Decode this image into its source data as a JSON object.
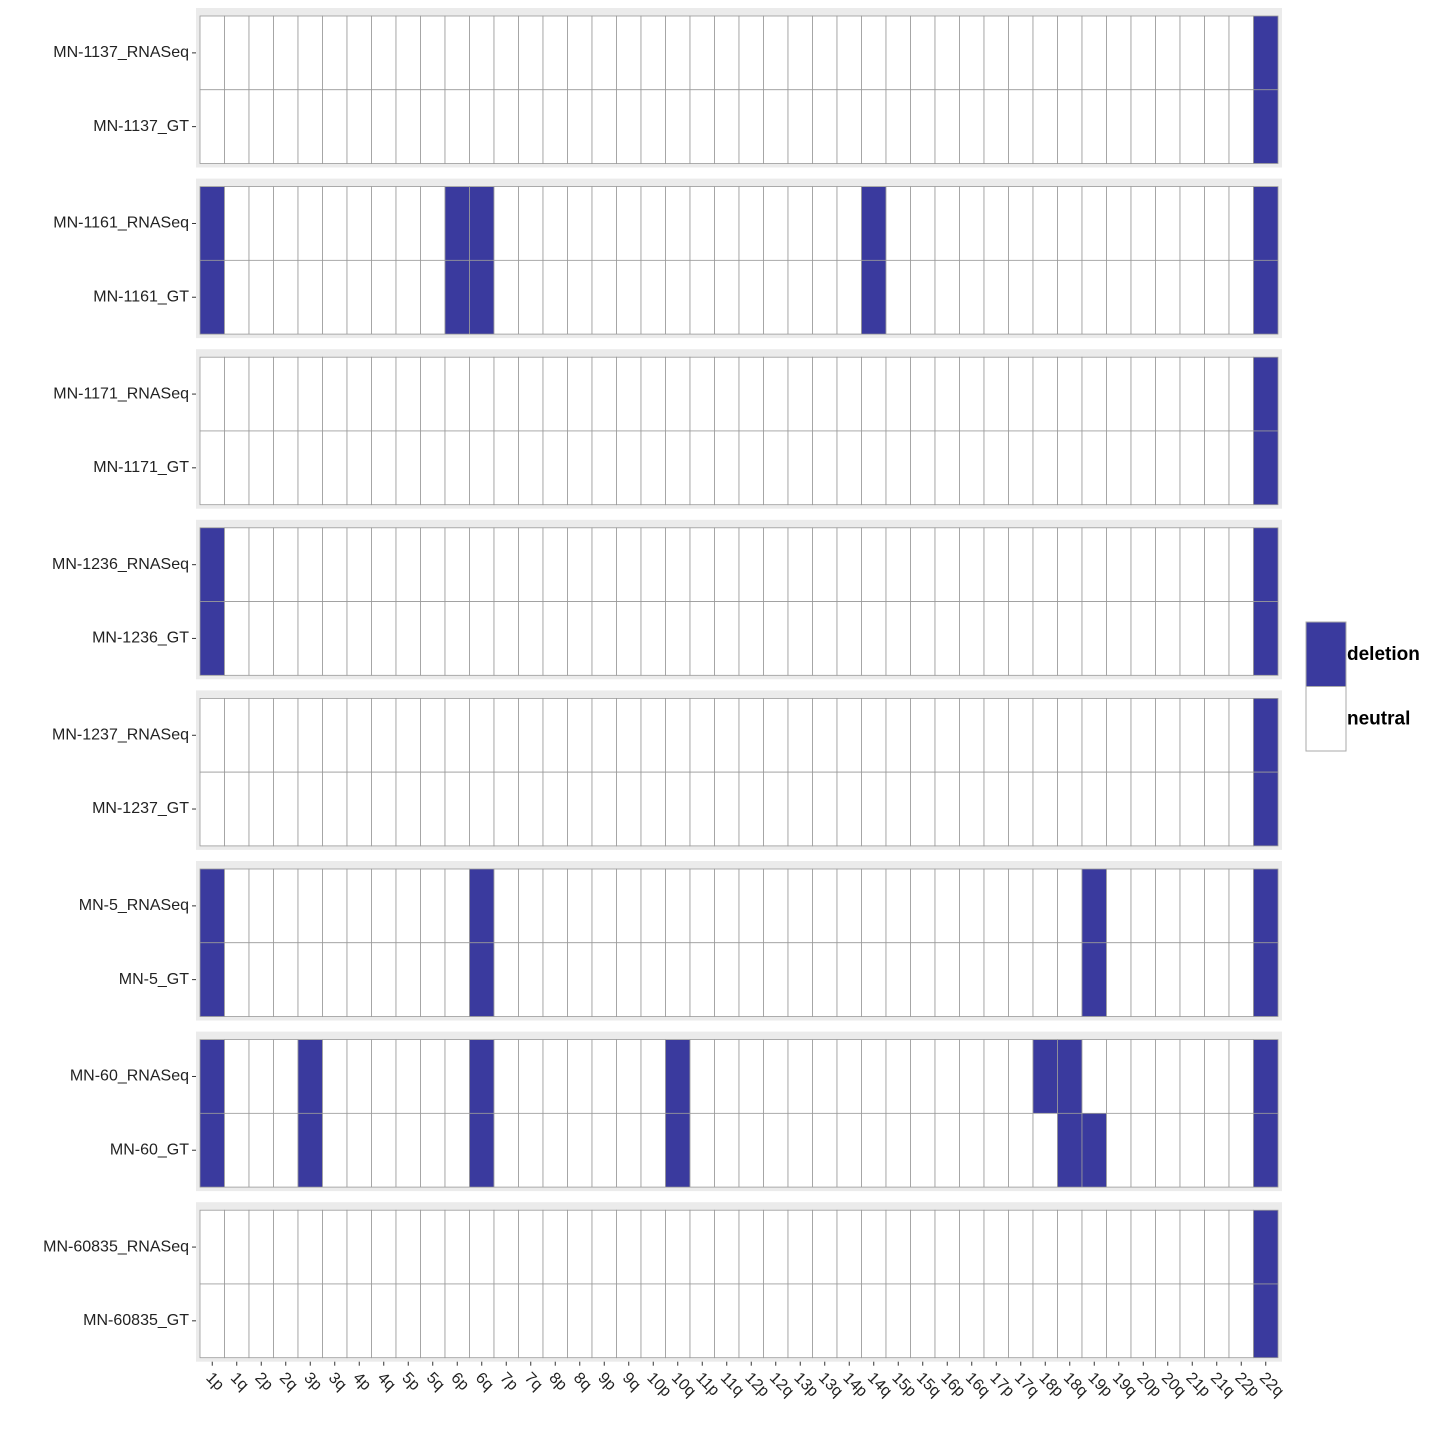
{
  "chart_data": {
    "type": "heatmap",
    "categories": [
      "1p",
      "1q",
      "2p",
      "2q",
      "3p",
      "3q",
      "4p",
      "4q",
      "5p",
      "5q",
      "6p",
      "6q",
      "7p",
      "7q",
      "8p",
      "8q",
      "9p",
      "9q",
      "10p",
      "10q",
      "11p",
      "11q",
      "12p",
      "12q",
      "13p",
      "13q",
      "14p",
      "14q",
      "15p",
      "15q",
      "16p",
      "16q",
      "17p",
      "17q",
      "18p",
      "18q",
      "19p",
      "19q",
      "20p",
      "20q",
      "21p",
      "21q",
      "22p",
      "22q"
    ],
    "legend": [
      {
        "name": "deletion",
        "color": "#3a3a9e"
      },
      {
        "name": "neutral",
        "color": "#ffffff"
      }
    ],
    "series": [
      {
        "name": "MN-1137_RNASeq",
        "values": [
          "neutral",
          "neutral",
          "neutral",
          "neutral",
          "neutral",
          "neutral",
          "neutral",
          "neutral",
          "neutral",
          "neutral",
          "neutral",
          "neutral",
          "neutral",
          "neutral",
          "neutral",
          "neutral",
          "neutral",
          "neutral",
          "neutral",
          "neutral",
          "neutral",
          "neutral",
          "neutral",
          "neutral",
          "neutral",
          "neutral",
          "neutral",
          "neutral",
          "neutral",
          "neutral",
          "neutral",
          "neutral",
          "neutral",
          "neutral",
          "neutral",
          "neutral",
          "neutral",
          "neutral",
          "neutral",
          "neutral",
          "neutral",
          "neutral",
          "neutral",
          "deletion"
        ]
      },
      {
        "name": "MN-1137_GT",
        "values": [
          "neutral",
          "neutral",
          "neutral",
          "neutral",
          "neutral",
          "neutral",
          "neutral",
          "neutral",
          "neutral",
          "neutral",
          "neutral",
          "neutral",
          "neutral",
          "neutral",
          "neutral",
          "neutral",
          "neutral",
          "neutral",
          "neutral",
          "neutral",
          "neutral",
          "neutral",
          "neutral",
          "neutral",
          "neutral",
          "neutral",
          "neutral",
          "neutral",
          "neutral",
          "neutral",
          "neutral",
          "neutral",
          "neutral",
          "neutral",
          "neutral",
          "neutral",
          "neutral",
          "neutral",
          "neutral",
          "neutral",
          "neutral",
          "neutral",
          "neutral",
          "deletion"
        ]
      },
      {
        "name": "MN-1161_RNASeq",
        "values": [
          "deletion",
          "neutral",
          "neutral",
          "neutral",
          "neutral",
          "neutral",
          "neutral",
          "neutral",
          "neutral",
          "neutral",
          "deletion",
          "deletion",
          "neutral",
          "neutral",
          "neutral",
          "neutral",
          "neutral",
          "neutral",
          "neutral",
          "neutral",
          "neutral",
          "neutral",
          "neutral",
          "neutral",
          "neutral",
          "neutral",
          "neutral",
          "deletion",
          "neutral",
          "neutral",
          "neutral",
          "neutral",
          "neutral",
          "neutral",
          "neutral",
          "neutral",
          "neutral",
          "neutral",
          "neutral",
          "neutral",
          "neutral",
          "neutral",
          "neutral",
          "deletion"
        ]
      },
      {
        "name": "MN-1161_GT",
        "values": [
          "deletion",
          "neutral",
          "neutral",
          "neutral",
          "neutral",
          "neutral",
          "neutral",
          "neutral",
          "neutral",
          "neutral",
          "deletion",
          "deletion",
          "neutral",
          "neutral",
          "neutral",
          "neutral",
          "neutral",
          "neutral",
          "neutral",
          "neutral",
          "neutral",
          "neutral",
          "neutral",
          "neutral",
          "neutral",
          "neutral",
          "neutral",
          "deletion",
          "neutral",
          "neutral",
          "neutral",
          "neutral",
          "neutral",
          "neutral",
          "neutral",
          "neutral",
          "neutral",
          "neutral",
          "neutral",
          "neutral",
          "neutral",
          "neutral",
          "neutral",
          "deletion"
        ]
      },
      {
        "name": "MN-1171_RNASeq",
        "values": [
          "neutral",
          "neutral",
          "neutral",
          "neutral",
          "neutral",
          "neutral",
          "neutral",
          "neutral",
          "neutral",
          "neutral",
          "neutral",
          "neutral",
          "neutral",
          "neutral",
          "neutral",
          "neutral",
          "neutral",
          "neutral",
          "neutral",
          "neutral",
          "neutral",
          "neutral",
          "neutral",
          "neutral",
          "neutral",
          "neutral",
          "neutral",
          "neutral",
          "neutral",
          "neutral",
          "neutral",
          "neutral",
          "neutral",
          "neutral",
          "neutral",
          "neutral",
          "neutral",
          "neutral",
          "neutral",
          "neutral",
          "neutral",
          "neutral",
          "neutral",
          "deletion"
        ]
      },
      {
        "name": "MN-1171_GT",
        "values": [
          "neutral",
          "neutral",
          "neutral",
          "neutral",
          "neutral",
          "neutral",
          "neutral",
          "neutral",
          "neutral",
          "neutral",
          "neutral",
          "neutral",
          "neutral",
          "neutral",
          "neutral",
          "neutral",
          "neutral",
          "neutral",
          "neutral",
          "neutral",
          "neutral",
          "neutral",
          "neutral",
          "neutral",
          "neutral",
          "neutral",
          "neutral",
          "neutral",
          "neutral",
          "neutral",
          "neutral",
          "neutral",
          "neutral",
          "neutral",
          "neutral",
          "neutral",
          "neutral",
          "neutral",
          "neutral",
          "neutral",
          "neutral",
          "neutral",
          "neutral",
          "deletion"
        ]
      },
      {
        "name": "MN-1236_RNASeq",
        "values": [
          "deletion",
          "neutral",
          "neutral",
          "neutral",
          "neutral",
          "neutral",
          "neutral",
          "neutral",
          "neutral",
          "neutral",
          "neutral",
          "neutral",
          "neutral",
          "neutral",
          "neutral",
          "neutral",
          "neutral",
          "neutral",
          "neutral",
          "neutral",
          "neutral",
          "neutral",
          "neutral",
          "neutral",
          "neutral",
          "neutral",
          "neutral",
          "neutral",
          "neutral",
          "neutral",
          "neutral",
          "neutral",
          "neutral",
          "neutral",
          "neutral",
          "neutral",
          "neutral",
          "neutral",
          "neutral",
          "neutral",
          "neutral",
          "neutral",
          "neutral",
          "deletion"
        ]
      },
      {
        "name": "MN-1236_GT",
        "values": [
          "deletion",
          "neutral",
          "neutral",
          "neutral",
          "neutral",
          "neutral",
          "neutral",
          "neutral",
          "neutral",
          "neutral",
          "neutral",
          "neutral",
          "neutral",
          "neutral",
          "neutral",
          "neutral",
          "neutral",
          "neutral",
          "neutral",
          "neutral",
          "neutral",
          "neutral",
          "neutral",
          "neutral",
          "neutral",
          "neutral",
          "neutral",
          "neutral",
          "neutral",
          "neutral",
          "neutral",
          "neutral",
          "neutral",
          "neutral",
          "neutral",
          "neutral",
          "neutral",
          "neutral",
          "neutral",
          "neutral",
          "neutral",
          "neutral",
          "neutral",
          "deletion"
        ]
      },
      {
        "name": "MN-1237_RNASeq",
        "values": [
          "neutral",
          "neutral",
          "neutral",
          "neutral",
          "neutral",
          "neutral",
          "neutral",
          "neutral",
          "neutral",
          "neutral",
          "neutral",
          "neutral",
          "neutral",
          "neutral",
          "neutral",
          "neutral",
          "neutral",
          "neutral",
          "neutral",
          "neutral",
          "neutral",
          "neutral",
          "neutral",
          "neutral",
          "neutral",
          "neutral",
          "neutral",
          "neutral",
          "neutral",
          "neutral",
          "neutral",
          "neutral",
          "neutral",
          "neutral",
          "neutral",
          "neutral",
          "neutral",
          "neutral",
          "neutral",
          "neutral",
          "neutral",
          "neutral",
          "neutral",
          "deletion"
        ]
      },
      {
        "name": "MN-1237_GT",
        "values": [
          "neutral",
          "neutral",
          "neutral",
          "neutral",
          "neutral",
          "neutral",
          "neutral",
          "neutral",
          "neutral",
          "neutral",
          "neutral",
          "neutral",
          "neutral",
          "neutral",
          "neutral",
          "neutral",
          "neutral",
          "neutral",
          "neutral",
          "neutral",
          "neutral",
          "neutral",
          "neutral",
          "neutral",
          "neutral",
          "neutral",
          "neutral",
          "neutral",
          "neutral",
          "neutral",
          "neutral",
          "neutral",
          "neutral",
          "neutral",
          "neutral",
          "neutral",
          "neutral",
          "neutral",
          "neutral",
          "neutral",
          "neutral",
          "neutral",
          "neutral",
          "deletion"
        ]
      },
      {
        "name": "MN-5_RNASeq",
        "values": [
          "deletion",
          "neutral",
          "neutral",
          "neutral",
          "neutral",
          "neutral",
          "neutral",
          "neutral",
          "neutral",
          "neutral",
          "neutral",
          "deletion",
          "neutral",
          "neutral",
          "neutral",
          "neutral",
          "neutral",
          "neutral",
          "neutral",
          "neutral",
          "neutral",
          "neutral",
          "neutral",
          "neutral",
          "neutral",
          "neutral",
          "neutral",
          "neutral",
          "neutral",
          "neutral",
          "neutral",
          "neutral",
          "neutral",
          "neutral",
          "neutral",
          "neutral",
          "deletion",
          "neutral",
          "neutral",
          "neutral",
          "neutral",
          "neutral",
          "neutral",
          "deletion"
        ]
      },
      {
        "name": "MN-5_GT",
        "values": [
          "deletion",
          "neutral",
          "neutral",
          "neutral",
          "neutral",
          "neutral",
          "neutral",
          "neutral",
          "neutral",
          "neutral",
          "neutral",
          "deletion",
          "neutral",
          "neutral",
          "neutral",
          "neutral",
          "neutral",
          "neutral",
          "neutral",
          "neutral",
          "neutral",
          "neutral",
          "neutral",
          "neutral",
          "neutral",
          "neutral",
          "neutral",
          "neutral",
          "neutral",
          "neutral",
          "neutral",
          "neutral",
          "neutral",
          "neutral",
          "neutral",
          "neutral",
          "deletion",
          "neutral",
          "neutral",
          "neutral",
          "neutral",
          "neutral",
          "neutral",
          "deletion"
        ]
      },
      {
        "name": "MN-60_RNASeq",
        "values": [
          "deletion",
          "neutral",
          "neutral",
          "neutral",
          "deletion",
          "neutral",
          "neutral",
          "neutral",
          "neutral",
          "neutral",
          "neutral",
          "deletion",
          "neutral",
          "neutral",
          "neutral",
          "neutral",
          "neutral",
          "neutral",
          "neutral",
          "deletion",
          "neutral",
          "neutral",
          "neutral",
          "neutral",
          "neutral",
          "neutral",
          "neutral",
          "neutral",
          "neutral",
          "neutral",
          "neutral",
          "neutral",
          "neutral",
          "neutral",
          "deletion",
          "deletion",
          "neutral",
          "neutral",
          "neutral",
          "neutral",
          "neutral",
          "neutral",
          "neutral",
          "deletion"
        ]
      },
      {
        "name": "MN-60_GT",
        "values": [
          "deletion",
          "neutral",
          "neutral",
          "neutral",
          "deletion",
          "neutral",
          "neutral",
          "neutral",
          "neutral",
          "neutral",
          "neutral",
          "deletion",
          "neutral",
          "neutral",
          "neutral",
          "neutral",
          "neutral",
          "neutral",
          "neutral",
          "deletion",
          "neutral",
          "neutral",
          "neutral",
          "neutral",
          "neutral",
          "neutral",
          "neutral",
          "neutral",
          "neutral",
          "neutral",
          "neutral",
          "neutral",
          "neutral",
          "neutral",
          "neutral",
          "deletion",
          "deletion",
          "neutral",
          "neutral",
          "neutral",
          "neutral",
          "neutral",
          "neutral",
          "deletion"
        ]
      },
      {
        "name": "MN-60835_RNASeq",
        "values": [
          "neutral",
          "neutral",
          "neutral",
          "neutral",
          "neutral",
          "neutral",
          "neutral",
          "neutral",
          "neutral",
          "neutral",
          "neutral",
          "neutral",
          "neutral",
          "neutral",
          "neutral",
          "neutral",
          "neutral",
          "neutral",
          "neutral",
          "neutral",
          "neutral",
          "neutral",
          "neutral",
          "neutral",
          "neutral",
          "neutral",
          "neutral",
          "neutral",
          "neutral",
          "neutral",
          "neutral",
          "neutral",
          "neutral",
          "neutral",
          "neutral",
          "neutral",
          "neutral",
          "neutral",
          "neutral",
          "neutral",
          "neutral",
          "neutral",
          "neutral",
          "deletion"
        ]
      },
      {
        "name": "MN-60835_GT",
        "values": [
          "neutral",
          "neutral",
          "neutral",
          "neutral",
          "neutral",
          "neutral",
          "neutral",
          "neutral",
          "neutral",
          "neutral",
          "neutral",
          "neutral",
          "neutral",
          "neutral",
          "neutral",
          "neutral",
          "neutral",
          "neutral",
          "neutral",
          "neutral",
          "neutral",
          "neutral",
          "neutral",
          "neutral",
          "neutral",
          "neutral",
          "neutral",
          "neutral",
          "neutral",
          "neutral",
          "neutral",
          "neutral",
          "neutral",
          "neutral",
          "neutral",
          "neutral",
          "neutral",
          "neutral",
          "neutral",
          "neutral",
          "neutral",
          "neutral",
          "neutral",
          "deletion"
        ]
      }
    ]
  }
}
